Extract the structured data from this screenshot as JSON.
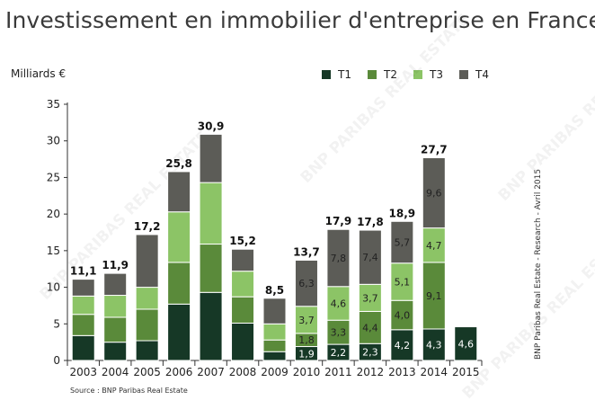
{
  "title": "Investissement en immobilier d'entreprise en France",
  "source": "Source : BNP Paribas Real Estate",
  "credit": "BNP Paribas Real Estate - Research - Avril 2015",
  "watermark": "BNP PARIBAS REAL ESTATE",
  "chart_data": {
    "type": "bar",
    "stacked": true,
    "title": "Investissement en immobilier d'entreprise en France",
    "ylabel": "Milliards €",
    "xlabel": "",
    "ylim": [
      0,
      35
    ],
    "yticks": [
      0,
      5,
      10,
      15,
      20,
      25,
      30,
      35
    ],
    "categories": [
      "2003",
      "2004",
      "2005",
      "2006",
      "2007",
      "2008",
      "2009",
      "2010",
      "2011",
      "2012",
      "2013",
      "2014",
      "2015"
    ],
    "series": [
      {
        "name": "T1",
        "color": "#163826",
        "values": [
          3.4,
          2.5,
          2.7,
          7.7,
          9.3,
          5.1,
          1.2,
          1.9,
          2.2,
          2.3,
          4.2,
          4.3,
          4.6
        ],
        "labels": [
          "",
          "",
          "",
          "",
          "",
          "",
          "",
          "1,9",
          "2,2",
          "2,3",
          "4,2",
          "4,3",
          "4,6"
        ]
      },
      {
        "name": "T2",
        "color": "#5a8a3a",
        "values": [
          2.9,
          3.4,
          4.3,
          5.7,
          6.6,
          3.6,
          1.6,
          1.8,
          3.3,
          4.4,
          4.0,
          9.1,
          0
        ],
        "labels": [
          "",
          "",
          "",
          "",
          "",
          "",
          "",
          "1,8",
          "3,3",
          "4,4",
          "4,0",
          "9,1",
          ""
        ]
      },
      {
        "name": "T3",
        "color": "#8cc466",
        "values": [
          2.5,
          3.0,
          3.0,
          6.9,
          8.4,
          3.5,
          2.2,
          3.7,
          4.6,
          3.7,
          5.1,
          4.7,
          0
        ],
        "labels": [
          "",
          "",
          "",
          "",
          "",
          "",
          "",
          "3,7",
          "4,6",
          "3,7",
          "5,1",
          "4,7",
          ""
        ]
      },
      {
        "name": "T4",
        "color": "#5c5c57",
        "values": [
          2.3,
          3.0,
          7.2,
          5.5,
          6.6,
          3.0,
          3.5,
          6.3,
          7.8,
          7.4,
          5.7,
          9.6,
          0
        ],
        "labels": [
          "",
          "",
          "",
          "",
          "",
          "",
          "",
          "6,3",
          "7,8",
          "7,4",
          "5,7",
          "9,6",
          ""
        ]
      }
    ],
    "totals": [
      "11,1",
      "11,9",
      "17,2",
      "25,8",
      "30,9",
      "15,2",
      "8,5",
      "13,7",
      "17,9",
      "17,8",
      "18,9",
      "27,7",
      ""
    ],
    "legend": "top-right"
  }
}
